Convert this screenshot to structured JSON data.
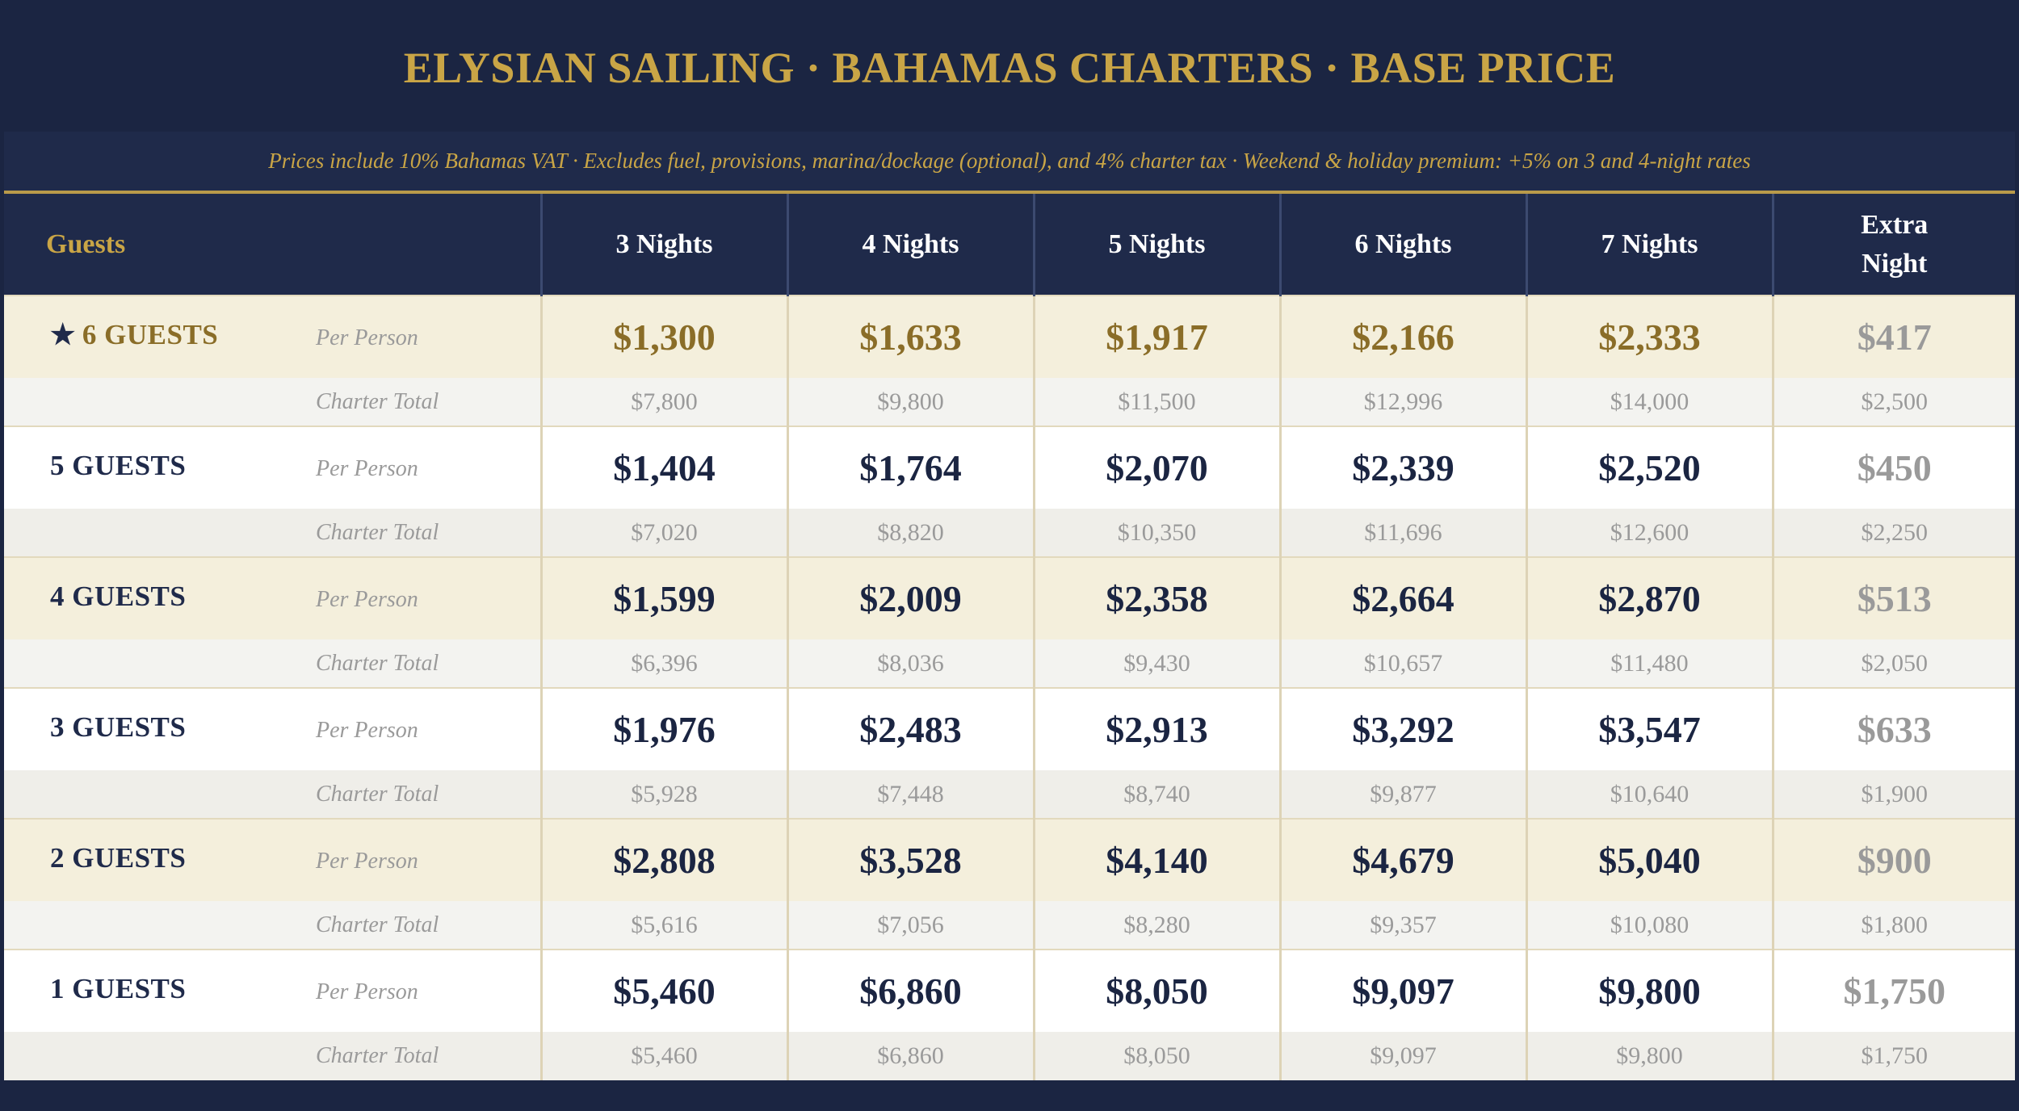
{
  "title": "ELYSIAN SAILING  ·  BAHAMAS CHARTERS  ·  BASE PRICE",
  "subtitle": "Prices include 10% Bahamas VAT  ·  Excludes fuel, provisions, marina/dockage (optional), and 4% charter tax  ·  Weekend & holiday premium: +5% on 3 and 4-night rates",
  "header": {
    "guests": "Guests",
    "columns": [
      "3 Nights",
      "4 Nights",
      "5 Nights",
      "6 Nights",
      "7 Nights"
    ],
    "extra_line1": "Extra",
    "extra_line2": "Night"
  },
  "labels": {
    "per_person": "Per Person",
    "charter_total": "Charter Total",
    "star": "★"
  },
  "colors": {
    "navy": "#1b2542",
    "gold": "#c9a546",
    "dark_gold": "#8a6d28",
    "cream": "#f4efdc",
    "grey_text": "#9a9a9a"
  },
  "rows": [
    {
      "guests": "6 GUESTS",
      "featured": true,
      "per_person": [
        "$1,300",
        "$1,633",
        "$1,917",
        "$2,166",
        "$2,333"
      ],
      "pp_extra": "$417",
      "charter_total": [
        "$7,800",
        "$9,800",
        "$11,500",
        "$12,996",
        "$14,000"
      ],
      "ct_extra": "$2,500"
    },
    {
      "guests": "5 GUESTS",
      "per_person": [
        "$1,404",
        "$1,764",
        "$2,070",
        "$2,339",
        "$2,520"
      ],
      "pp_extra": "$450",
      "charter_total": [
        "$7,020",
        "$8,820",
        "$10,350",
        "$11,696",
        "$12,600"
      ],
      "ct_extra": "$2,250"
    },
    {
      "guests": "4 GUESTS",
      "per_person": [
        "$1,599",
        "$2,009",
        "$2,358",
        "$2,664",
        "$2,870"
      ],
      "pp_extra": "$513",
      "charter_total": [
        "$6,396",
        "$8,036",
        "$9,430",
        "$10,657",
        "$11,480"
      ],
      "ct_extra": "$2,050"
    },
    {
      "guests": "3 GUESTS",
      "per_person": [
        "$1,976",
        "$2,483",
        "$2,913",
        "$3,292",
        "$3,547"
      ],
      "pp_extra": "$633",
      "charter_total": [
        "$5,928",
        "$7,448",
        "$8,740",
        "$9,877",
        "$10,640"
      ],
      "ct_extra": "$1,900"
    },
    {
      "guests": "2 GUESTS",
      "per_person": [
        "$2,808",
        "$3,528",
        "$4,140",
        "$4,679",
        "$5,040"
      ],
      "pp_extra": "$900",
      "charter_total": [
        "$5,616",
        "$7,056",
        "$8,280",
        "$9,357",
        "$10,080"
      ],
      "ct_extra": "$1,800"
    },
    {
      "guests": "1 GUESTS",
      "per_person": [
        "$5,460",
        "$6,860",
        "$8,050",
        "$9,097",
        "$9,800"
      ],
      "pp_extra": "$1,750",
      "charter_total": [
        "$5,460",
        "$6,860",
        "$8,050",
        "$9,097",
        "$9,800"
      ],
      "ct_extra": "$1,750"
    }
  ]
}
